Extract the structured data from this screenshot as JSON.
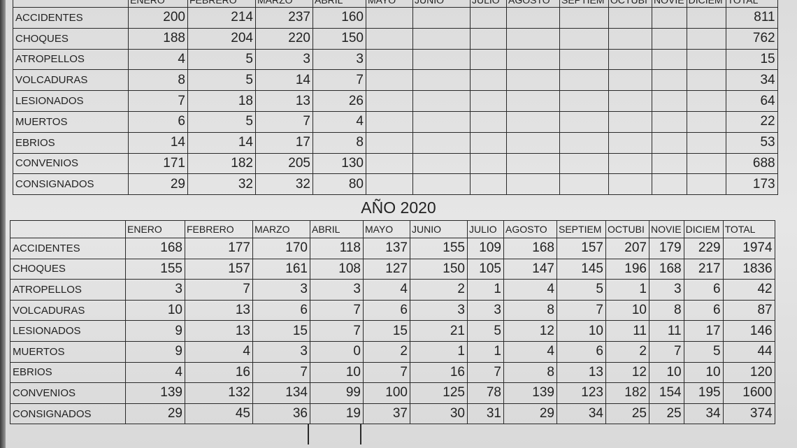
{
  "months": [
    "ENERO",
    "FEBRERO",
    "MARZO",
    "ABRIL",
    "MAYO",
    "JUNIO",
    "JULIO",
    "AGOSTO",
    "SEPTIEM",
    "OCTUBI",
    "NOVIE",
    "DICIEM",
    "TOTAL"
  ],
  "table_2019": {
    "rows": [
      {
        "label": "ACCIDENTES",
        "values": [
          "200",
          "214",
          "237",
          "160",
          "",
          "",
          "",
          "",
          "",
          "",
          "",
          "",
          "811"
        ]
      },
      {
        "label": "CHOQUES",
        "values": [
          "188",
          "204",
          "220",
          "150",
          "",
          "",
          "",
          "",
          "",
          "",
          "",
          "",
          "762"
        ]
      },
      {
        "label": "ATROPELLOS",
        "values": [
          "4",
          "5",
          "3",
          "3",
          "",
          "",
          "",
          "",
          "",
          "",
          "",
          "",
          "15"
        ]
      },
      {
        "label": "VOLCADURAS",
        "values": [
          "8",
          "5",
          "14",
          "7",
          "",
          "",
          "",
          "",
          "",
          "",
          "",
          "",
          "34"
        ]
      },
      {
        "label": "LESIONADOS",
        "values": [
          "7",
          "18",
          "13",
          "26",
          "",
          "",
          "",
          "",
          "",
          "",
          "",
          "",
          "64"
        ]
      },
      {
        "label": "MUERTOS",
        "values": [
          "6",
          "5",
          "7",
          "4",
          "",
          "",
          "",
          "",
          "",
          "",
          "",
          "",
          "22"
        ]
      },
      {
        "label": "EBRIOS",
        "values": [
          "14",
          "14",
          "17",
          "8",
          "",
          "",
          "",
          "",
          "",
          "",
          "",
          "",
          "53"
        ]
      },
      {
        "label": "CONVENIOS",
        "values": [
          "171",
          "182",
          "205",
          "130",
          "",
          "",
          "",
          "",
          "",
          "",
          "",
          "",
          "688"
        ]
      },
      {
        "label": "CONSIGNADOS",
        "values": [
          "29",
          "32",
          "32",
          "80",
          "",
          "",
          "",
          "",
          "",
          "",
          "",
          "",
          "173"
        ]
      }
    ]
  },
  "table_2020": {
    "title": "AÑO 2020",
    "rows": [
      {
        "label": "ACCIDENTES",
        "values": [
          "168",
          "177",
          "170",
          "118",
          "137",
          "155",
          "109",
          "168",
          "157",
          "207",
          "179",
          "229",
          "1974"
        ]
      },
      {
        "label": "CHOQUES",
        "values": [
          "155",
          "157",
          "161",
          "108",
          "127",
          "150",
          "105",
          "147",
          "145",
          "196",
          "168",
          "217",
          "1836"
        ]
      },
      {
        "label": "ATROPELLOS",
        "values": [
          "3",
          "7",
          "3",
          "3",
          "4",
          "2",
          "1",
          "4",
          "5",
          "1",
          "3",
          "6",
          "42"
        ]
      },
      {
        "label": "VOLCADURAS",
        "values": [
          "10",
          "13",
          "6",
          "7",
          "6",
          "3",
          "3",
          "8",
          "7",
          "10",
          "8",
          "6",
          "87"
        ]
      },
      {
        "label": "LESIONADOS",
        "values": [
          "9",
          "13",
          "15",
          "7",
          "15",
          "21",
          "5",
          "12",
          "10",
          "11",
          "11",
          "17",
          "146"
        ]
      },
      {
        "label": "MUERTOS",
        "values": [
          "9",
          "4",
          "3",
          "0",
          "2",
          "1",
          "1",
          "4",
          "6",
          "2",
          "7",
          "5",
          "44"
        ]
      },
      {
        "label": "EBRIOS",
        "values": [
          "4",
          "16",
          "7",
          "10",
          "7",
          "16",
          "7",
          "8",
          "13",
          "12",
          "10",
          "10",
          "120"
        ]
      },
      {
        "label": "CONVENIOS",
        "values": [
          "139",
          "132",
          "134",
          "99",
          "100",
          "125",
          "78",
          "139",
          "123",
          "182",
          "154",
          "195",
          "1600"
        ]
      },
      {
        "label": "CONSIGNADOS",
        "values": [
          "29",
          "45",
          "36",
          "19",
          "37",
          "30",
          "31",
          "29",
          "34",
          "25",
          "25",
          "34",
          "374"
        ]
      }
    ]
  }
}
